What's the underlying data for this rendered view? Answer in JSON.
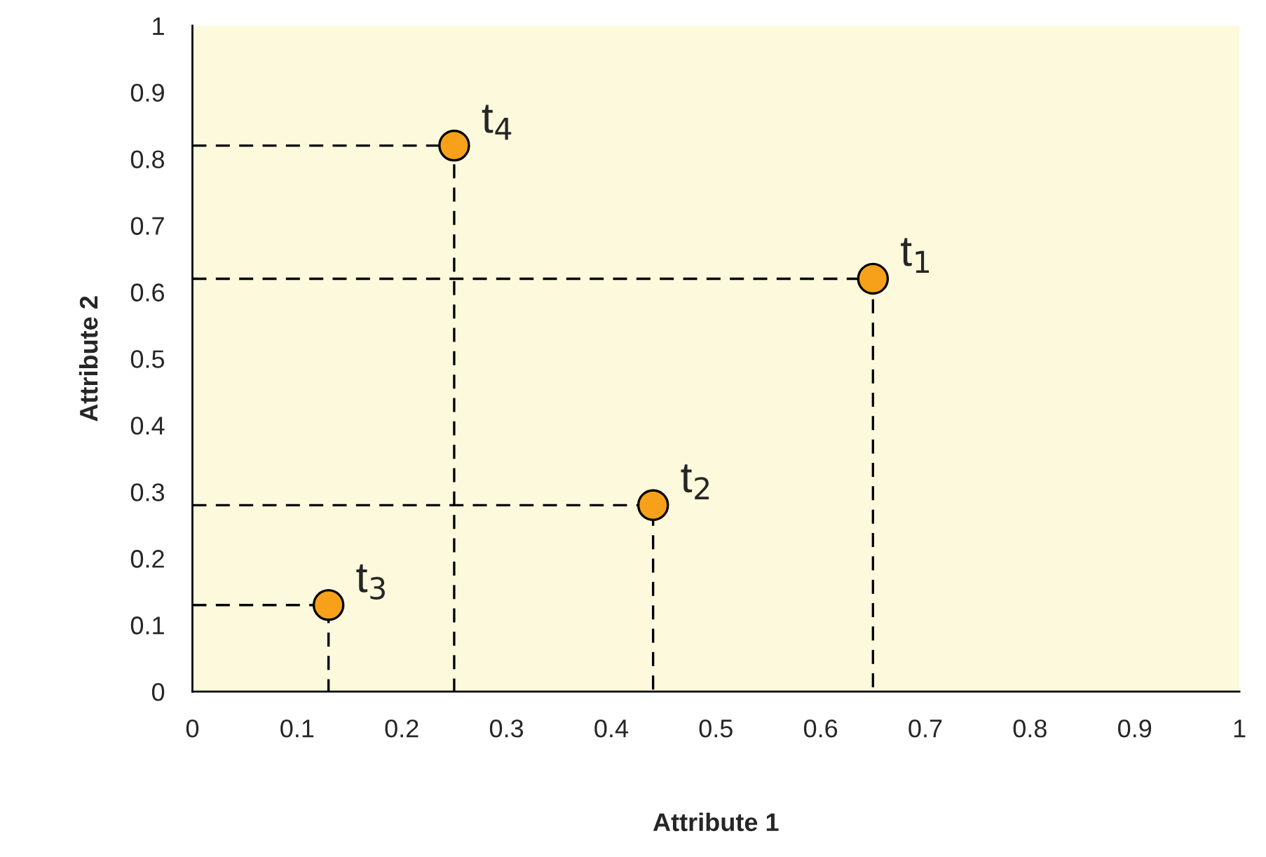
{
  "chart_data": {
    "type": "scatter",
    "xlabel": "Attribute 1",
    "ylabel": "Attribute 2",
    "x": [
      0.65,
      0.44,
      0.13,
      0.25
    ],
    "series": [
      {
        "type": "line",
        "color": "#000000",
        "line_style": "dashed",
        "marker": "none",
        "x": [
          0,
          0.65,
          0.65
        ],
        "values": [
          0.62,
          0.62,
          0
        ]
      },
      {
        "type": "line",
        "color": "#000000",
        "line_style": "dashed",
        "marker": "none",
        "x": [
          0,
          0.44,
          0.44
        ],
        "values": [
          0.28,
          0.28,
          0
        ]
      },
      {
        "type": "line",
        "color": "#000000",
        "line_style": "dashed",
        "marker": "none",
        "x": [
          0,
          0.13,
          0.13
        ],
        "values": [
          0.13,
          0.13,
          0
        ]
      },
      {
        "type": "line",
        "color": "#000000",
        "line_style": "dashed",
        "marker": "none",
        "x": [
          0,
          0.25,
          0.25
        ],
        "values": [
          0.82,
          0.82,
          0
        ]
      },
      {
        "color": "#f7a11a",
        "values": [
          0.62,
          0.28,
          0.13,
          0.82
        ]
      }
    ],
    "xlim": [
      0,
      1
    ],
    "ylim": [
      0,
      1
    ],
    "xticks": [
      0,
      0.1,
      0.2,
      0.3,
      0.4,
      0.5,
      0.6,
      0.7,
      0.8,
      0.9,
      1
    ],
    "yticks": [
      0,
      0.1,
      0.2,
      0.3,
      0.4,
      0.5,
      0.6,
      0.7,
      0.8,
      0.9,
      1
    ],
    "marker": "circle",
    "grid": false,
    "legend": false,
    "annotations": [
      {
        "text": "t$_{1}$",
        "x": 0.65,
        "y": 0.62
      },
      {
        "text": "t$_{2}$",
        "x": 0.44,
        "y": 0.28
      },
      {
        "text": "t$_{3}$",
        "x": 0.13,
        "y": 0.13
      },
      {
        "text": "t$_{4}$",
        "x": 0.25,
        "y": 0.82
      }
    ]
  }
}
